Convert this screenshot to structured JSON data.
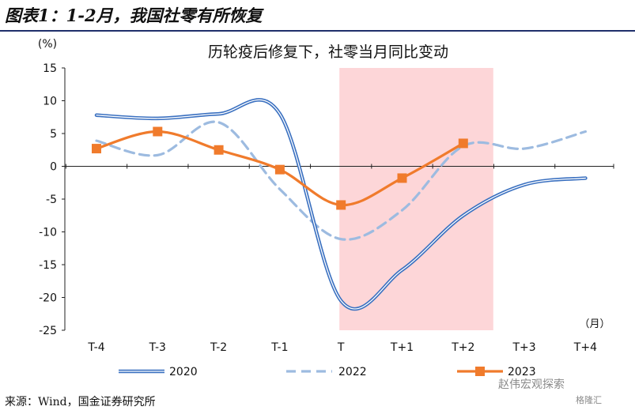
{
  "figure_title": "图表1：1-2月，我国社零有所恢复",
  "source_note": "来源：Wind，国金证券研究所",
  "watermark": "赵伟宏观探索",
  "watermark_sub": "格隆汇",
  "colors": {
    "s2020": "#3a70c0",
    "s2022": "#9dbbe0",
    "s2023": "#f07b2c",
    "shade": "#fdd6d8"
  },
  "chart_data": {
    "type": "line",
    "title": "历轮疫后修复下，社零当月同比变动",
    "ylabel": "(%)",
    "xlabel": "（月）",
    "categories": [
      "T-4",
      "T-3",
      "T-2",
      "T-1",
      "T",
      "T+1",
      "T+2",
      "T+3",
      "T+4"
    ],
    "ylim": [
      -25,
      15
    ],
    "yticks": [
      15,
      10,
      5,
      0,
      -5,
      -10,
      -15,
      -20,
      -25
    ],
    "shaded_range": [
      "T",
      "T+2"
    ],
    "legend_position": "bottom",
    "series": [
      {
        "name": "2020",
        "style": "double-solid",
        "values": [
          7.8,
          7.3,
          8.0,
          8.0,
          -20.5,
          -15.8,
          -7.5,
          -2.8,
          -1.8
        ]
      },
      {
        "name": "2022",
        "style": "dashed",
        "values": [
          3.9,
          1.7,
          6.7,
          -3.5,
          -11.1,
          -6.7,
          3.1,
          2.7,
          5.3
        ]
      },
      {
        "name": "2023",
        "style": "solid-square",
        "values": [
          2.7,
          5.3,
          2.5,
          -0.5,
          -5.9,
          -1.8,
          3.5,
          null,
          null
        ]
      }
    ]
  }
}
